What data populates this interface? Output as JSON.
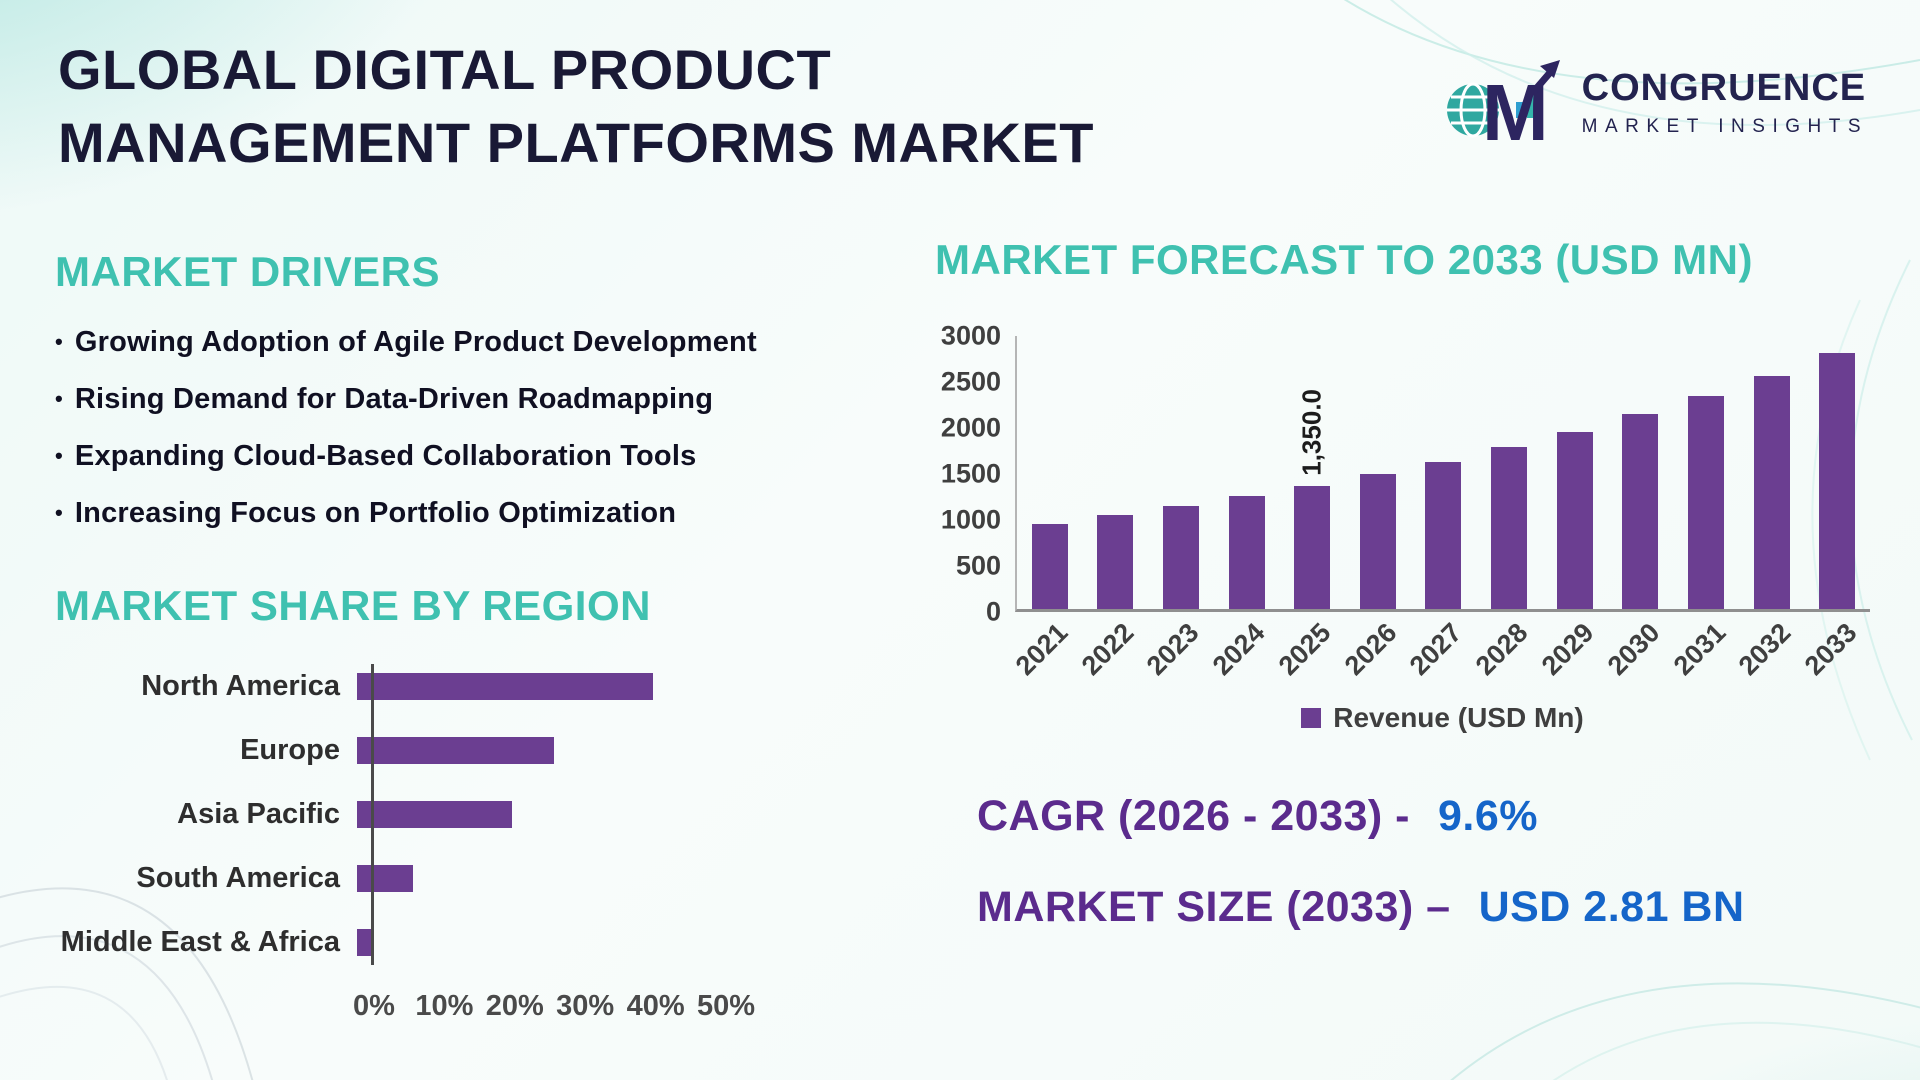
{
  "header": {
    "title_line1": "GLOBAL DIGITAL PRODUCT",
    "title_line2": "MANAGEMENT PLATFORMS MARKET",
    "logo": {
      "brand_line1": "CONGRUENCE",
      "brand_line2": "MARKET INSIGHTS"
    }
  },
  "market_drivers": {
    "heading": "MARKET DRIVERS",
    "items": [
      "Growing Adoption of Agile Product Development",
      "Rising Demand for Data-Driven Roadmapping",
      "Expanding Cloud-Based Collaboration Tools",
      "Increasing Focus on Portfolio Optimization"
    ]
  },
  "colors": {
    "accent_teal": "#3fc1b0",
    "bar_purple": "#6b3e91",
    "title_navy": "#191935",
    "accent_blue": "#1565c9",
    "text_purple": "#5b2b8d"
  },
  "chart_data": [
    {
      "type": "bar",
      "orientation": "horizontal",
      "title": "MARKET SHARE BY REGION",
      "categories": [
        "North America",
        "Europe",
        "Asia Pacific",
        "South America",
        "Middle East & Africa"
      ],
      "values": [
        42,
        28,
        22,
        8,
        2
      ],
      "unit": "%",
      "xlim": [
        0,
        50
      ],
      "xticks": [
        "0%",
        "10%",
        "20%",
        "30%",
        "40%",
        "50%"
      ],
      "grid": false,
      "legend_position": "none"
    },
    {
      "type": "bar",
      "orientation": "vertical",
      "title": "MARKET FORECAST TO 2033 (USD MN)",
      "categories": [
        "2021",
        "2022",
        "2023",
        "2024",
        "2025",
        "2026",
        "2027",
        "2028",
        "2029",
        "2030",
        "2031",
        "2032",
        "2033"
      ],
      "values": [
        930,
        1030,
        1130,
        1240,
        1350,
        1480,
        1620,
        1780,
        1950,
        2140,
        2340,
        2560,
        2810
      ],
      "ylim": [
        0,
        3000
      ],
      "yticks": [
        0,
        500,
        1000,
        1500,
        2000,
        2500,
        3000
      ],
      "data_label": {
        "index": 4,
        "text": "1,350.0"
      },
      "legend": "Revenue (USD Mn)",
      "grid": false,
      "legend_position": "bottom"
    }
  ],
  "stats": {
    "cagr_label": "CAGR (2026 - 2033) -",
    "cagr_value": "9.6%",
    "market_size_label": "MARKET SIZE (2033) –",
    "market_size_value": "USD 2.81 BN"
  }
}
